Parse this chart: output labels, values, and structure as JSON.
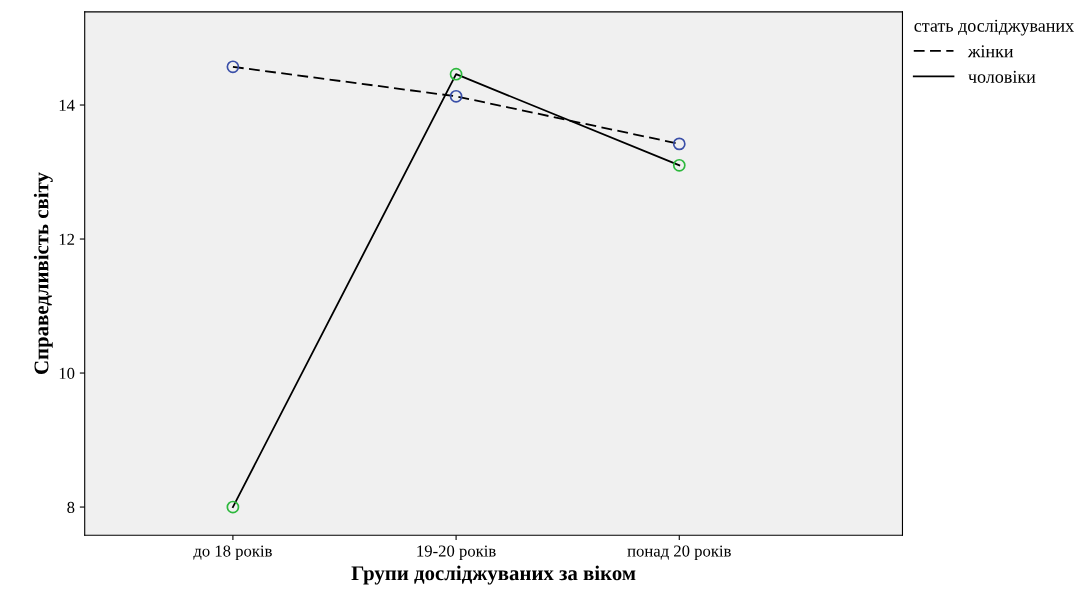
{
  "chart_data": {
    "type": "line",
    "xlabel": "Групи досліджуваних за віком",
    "ylabel": "Справедливість світу",
    "categories": [
      "до 18 років",
      "19-20 років",
      "понад 20 років"
    ],
    "series": [
      {
        "name": "жінки",
        "color": "#000000",
        "line_style": "dashed",
        "colors": [
          "#3a4fa8",
          "#3a4fa8",
          "#3a4fa8"
        ],
        "values": [
          14.57,
          14.13,
          13.42
        ]
      },
      {
        "name": "чоловіки",
        "color": "#000000",
        "line_style": "solid",
        "colors": [
          "#2db83d",
          "#2db83d",
          "#2db83d"
        ],
        "values": [
          8.0,
          14.46,
          13.1
        ]
      }
    ],
    "ylim": [
      7.58,
      15.39
    ],
    "yticks": [
      8,
      10,
      12,
      14
    ],
    "marker": "circle",
    "grid": false,
    "legend": "top right",
    "legend_title": "стать досліджуваних"
  }
}
